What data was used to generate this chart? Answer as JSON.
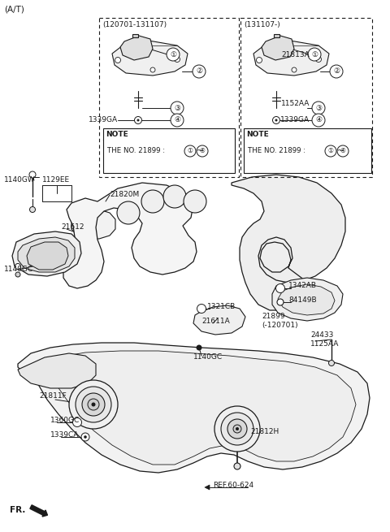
{
  "bg_color": "#ffffff",
  "line_color": "#1a1a1a",
  "fig_width": 4.8,
  "fig_height": 6.55,
  "dpi": 100,
  "labels": {
    "top_left": "(A/T)",
    "box1_title": "(120701-131107)",
    "box2_title": "(131107-)",
    "part_21813A": "21813A",
    "part_1152AA": "1152AA",
    "part_1339GA": "1339GA",
    "part_1140GW": "1140GW",
    "part_1129EE": "1129EE",
    "part_21820M": "21820M",
    "part_21612": "21612",
    "part_1140GC_left": "1140GC",
    "part_1321CB": "1321CB",
    "part_21611A": "21611A",
    "part_1342AB": "1342AB",
    "part_84149B": "84149B",
    "part_21899": "21899\n(-120701)",
    "part_24433": "24433\n1125AA",
    "part_21811F": "21811F",
    "part_1360GC": "1360GC",
    "part_1339CA": "1339CA",
    "part_21812H": "21812H",
    "part_1140GC_mid": "1140GC",
    "ref": "REF.60-624",
    "fr": "FR.",
    "note_text": "THE NO. 21899 :",
    "note_label": "NOTE"
  }
}
